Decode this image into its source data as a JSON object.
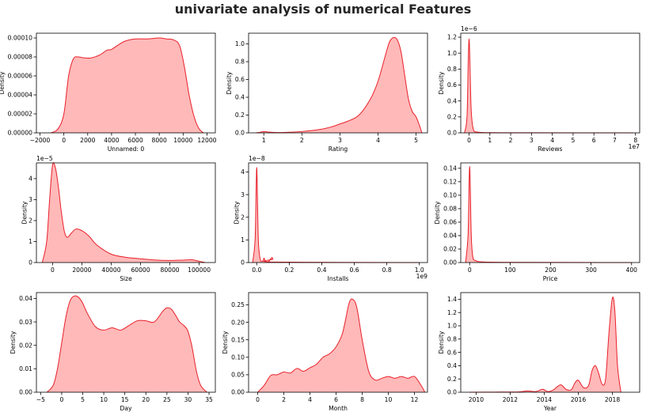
{
  "title": "univariate analysis of numerical Features",
  "colors": {
    "line": "#e8202a",
    "fill": "#ffb9b9",
    "axis": "#000000"
  },
  "chart_data": [
    {
      "type": "area",
      "xlabel": "Unnamed: 0",
      "ylabel": "Density",
      "xlim": [
        -2300,
        12700
      ],
      "ylim": [
        0,
        0.000105
      ],
      "xticks": [
        -2000,
        0,
        2000,
        4000,
        6000,
        8000,
        10000,
        12000
      ],
      "xtick_labels": [
        "−2000",
        "0",
        "2000",
        "4000",
        "6000",
        "8000",
        "10000",
        "12000"
      ],
      "yticks": [
        0,
        2e-05,
        4e-05,
        6e-05,
        8e-05,
        0.0001
      ],
      "ytick_labels": [
        "0.00000",
        "0.00002",
        "0.00004",
        "0.00006",
        "0.00008",
        "0.00010"
      ],
      "offset_label": "",
      "x": [
        -1100,
        -500,
        0,
        400,
        800,
        1200,
        1700,
        2300,
        3000,
        3600,
        4000,
        4600,
        5200,
        6000,
        7000,
        8000,
        8600,
        9200,
        9700,
        10100,
        10500,
        10900,
        11300,
        11700
      ],
      "y": [
        0,
        4e-06,
        2e-05,
        6e-05,
        7.8e-05,
        8e-05,
        7.9e-05,
        7.9e-05,
        8.2e-05,
        8.7e-05,
        8.8e-05,
        9.3e-05,
        9.7e-05,
        9.9e-05,
        9.9e-05,
        0.0001,
        9.9e-05,
        9.8e-05,
        9.2e-05,
        7e-05,
        4e-05,
        1.8e-05,
        5e-06,
        0
      ]
    },
    {
      "type": "area",
      "xlabel": "Rating",
      "ylabel": "Density",
      "xlim": [
        0.6,
        5.3
      ],
      "ylim": [
        0,
        1.12
      ],
      "xticks": [
        1,
        2,
        3,
        4,
        5
      ],
      "xtick_labels": [
        "1",
        "2",
        "3",
        "4",
        "5"
      ],
      "yticks": [
        0,
        0.2,
        0.4,
        0.6,
        0.8,
        1.0
      ],
      "ytick_labels": [
        "0.0",
        "0.2",
        "0.4",
        "0.6",
        "0.8",
        "1.0"
      ],
      "offset_label": "",
      "x": [
        0.8,
        0.95,
        1.0,
        1.1,
        1.3,
        1.6,
        2.0,
        2.5,
        2.8,
        3.0,
        3.2,
        3.5,
        3.8,
        4.0,
        4.2,
        4.3,
        4.4,
        4.5,
        4.6,
        4.7,
        4.8,
        4.9,
        5.0,
        5.1,
        5.15
      ],
      "y": [
        0,
        0.01,
        0.015,
        0.01,
        0.004,
        0.006,
        0.015,
        0.04,
        0.07,
        0.1,
        0.13,
        0.2,
        0.38,
        0.58,
        0.88,
        1.02,
        1.07,
        1.05,
        0.92,
        0.65,
        0.38,
        0.24,
        0.18,
        0.07,
        0
      ]
    },
    {
      "type": "area",
      "xlabel": "Reviews",
      "ylabel": "Density",
      "xlim": [
        -400000,
        8200000
      ],
      "ylim": [
        0,
        1.25e-06
      ],
      "xticks": [
        0,
        1000000,
        2000000,
        3000000,
        4000000,
        5000000,
        6000000,
        7000000,
        8000000
      ],
      "xtick_labels": [
        "0",
        "1",
        "2",
        "3",
        "4",
        "5",
        "6",
        "7",
        "8"
      ],
      "yticks": [
        0,
        2e-07,
        4e-07,
        6e-07,
        8e-07,
        1e-06,
        1.2e-06
      ],
      "ytick_labels": [
        "0.0",
        "0.2",
        "0.4",
        "0.6",
        "0.8",
        "1.0",
        "1.2"
      ],
      "offset_label": "1e−6",
      "x_offset_label": "1e7",
      "x": [
        -220000,
        -100000,
        -40000,
        0,
        40000,
        100000,
        200000,
        400000,
        1000000,
        3000000,
        7900000
      ],
      "y": [
        0,
        2e-07,
        9e-07,
        1.18e-06,
        9e-07,
        3e-07,
        5e-08,
        1e-08,
        2e-09,
        1e-09,
        0
      ]
    },
    {
      "type": "area",
      "xlabel": "Size",
      "ylabel": "Density",
      "xlim": [
        -11000,
        111000
      ],
      "ylim": [
        0,
        4.75e-05
      ],
      "xticks": [
        0,
        20000,
        40000,
        60000,
        80000,
        100000
      ],
      "xtick_labels": [
        "0",
        "20000",
        "40000",
        "60000",
        "80000",
        "100000"
      ],
      "yticks": [
        0,
        1e-05,
        2e-05,
        3e-05,
        4e-05
      ],
      "ytick_labels": [
        "0",
        "1",
        "2",
        "3",
        "4"
      ],
      "offset_label": "1e−5",
      "x": [
        -7000,
        -4000,
        -2000,
        0,
        2000,
        4000,
        6000,
        8000,
        10000,
        13000,
        16000,
        20000,
        25000,
        30000,
        40000,
        50000,
        60000,
        70000,
        80000,
        90000,
        95000,
        100000,
        104000
      ],
      "y": [
        0,
        1e-05,
        3e-05,
        4.65e-05,
        4.5e-05,
        3.6e-05,
        2.4e-05,
        1.5e-05,
        1.2e-05,
        1.42e-05,
        1.6e-05,
        1.52e-05,
        1.25e-05,
        8.5e-06,
        4e-06,
        2.5e-06,
        1.8e-06,
        1.2e-06,
        1e-06,
        1.2e-06,
        1.3e-06,
        6e-07,
        0
      ]
    },
    {
      "type": "area",
      "xlabel": "Installs",
      "ylabel": "Density",
      "xlim": [
        -50000000,
        1050000000
      ],
      "ylim": [
        0,
        4.4e-08
      ],
      "xticks": [
        0,
        200000000,
        400000000,
        600000000,
        800000000,
        1000000000
      ],
      "xtick_labels": [
        "0.0",
        "0.2",
        "0.4",
        "0.6",
        "0.8",
        "1.0"
      ],
      "yticks": [
        0,
        1e-08,
        2e-08,
        3e-08,
        4e-08
      ],
      "ytick_labels": [
        "0",
        "1",
        "2",
        "3",
        "4"
      ],
      "offset_label": "1e−8",
      "x_offset_label": "1e9",
      "x": [
        -25000000,
        -10000000,
        -3000000,
        0,
        3000000,
        10000000,
        20000000,
        30000000,
        40000000,
        45000000,
        50000000,
        60000000,
        70000000,
        80000000,
        90000000,
        95000000,
        100000000,
        110000000,
        1000000000
      ],
      "y": [
        0,
        1e-08,
        3.5e-08,
        4.2e-08,
        3.5e-08,
        1e-08,
        2e-09,
        5e-10,
        1e-09,
        2e-09,
        1e-09,
        3e-10,
        2e-10,
        1e-09,
        2e-09,
        2.2e-09,
        1.5e-09,
        2e-10,
        0
      ]
    },
    {
      "type": "area",
      "xlabel": "Price",
      "ylabel": "Density",
      "xlim": [
        -22,
        420
      ],
      "ylim": [
        0,
        0.148
      ],
      "xticks": [
        0,
        100,
        200,
        300,
        400
      ],
      "xtick_labels": [
        "0",
        "100",
        "200",
        "300",
        "400"
      ],
      "yticks": [
        0,
        0.02,
        0.04,
        0.06,
        0.08,
        0.1,
        0.12,
        0.14
      ],
      "ytick_labels": [
        "0.00",
        "0.02",
        "0.04",
        "0.06",
        "0.08",
        "0.10",
        "0.12",
        "0.14"
      ],
      "offset_label": "",
      "x": [
        -10,
        -4,
        -1.5,
        0,
        1.5,
        4,
        8,
        15,
        30,
        100,
        400
      ],
      "y": [
        0,
        0.04,
        0.115,
        0.143,
        0.115,
        0.04,
        0.008,
        0.003,
        0.001,
        0.0003,
        0
      ]
    },
    {
      "type": "area",
      "xlabel": "Day",
      "ylabel": "Density",
      "xlim": [
        -6,
        36.5
      ],
      "ylim": [
        0,
        0.0425
      ],
      "xticks": [
        -5,
        0,
        5,
        10,
        15,
        20,
        25,
        30,
        35
      ],
      "xtick_labels": [
        "−5",
        "0",
        "5",
        "10",
        "15",
        "20",
        "25",
        "30",
        "35"
      ],
      "yticks": [
        0,
        0.01,
        0.02,
        0.03,
        0.04
      ],
      "ytick_labels": [
        "0.00",
        "0.01",
        "0.02",
        "0.03",
        "0.04"
      ],
      "offset_label": "",
      "x": [
        -3.5,
        -2,
        -1,
        0,
        1,
        2,
        3,
        4,
        5,
        6,
        8,
        10,
        12,
        14,
        16,
        18,
        20,
        22,
        24,
        25,
        26,
        27,
        28,
        29,
        30,
        31,
        32,
        33,
        34.5
      ],
      "y": [
        0,
        0.003,
        0.01,
        0.021,
        0.032,
        0.039,
        0.041,
        0.0405,
        0.038,
        0.034,
        0.028,
        0.0265,
        0.0275,
        0.0265,
        0.0285,
        0.0305,
        0.0305,
        0.03,
        0.0345,
        0.036,
        0.0355,
        0.033,
        0.03,
        0.0285,
        0.026,
        0.019,
        0.009,
        0.003,
        0
      ]
    },
    {
      "type": "area",
      "xlabel": "Month",
      "ylabel": "Density",
      "xlim": [
        -0.7,
        13.0
      ],
      "ylim": [
        0,
        0.285
      ],
      "xticks": [
        0,
        2,
        4,
        6,
        8,
        10,
        12
      ],
      "xtick_labels": [
        "0",
        "2",
        "4",
        "6",
        "8",
        "10",
        "12"
      ],
      "yticks": [
        0,
        0.05,
        0.1,
        0.15,
        0.2,
        0.25
      ],
      "ytick_labels": [
        "0.00",
        "0.05",
        "0.10",
        "0.15",
        "0.20",
        "0.25"
      ],
      "offset_label": "",
      "x": [
        0,
        0.5,
        1,
        1.5,
        2,
        2.5,
        3,
        3.5,
        4,
        4.5,
        5,
        5.5,
        6,
        6.5,
        7,
        7.3,
        7.6,
        8,
        8.5,
        9,
        9.5,
        10,
        10.5,
        11,
        11.5,
        12,
        12.5,
        12.8
      ],
      "y": [
        0,
        0.02,
        0.048,
        0.05,
        0.058,
        0.055,
        0.068,
        0.06,
        0.07,
        0.08,
        0.1,
        0.11,
        0.13,
        0.17,
        0.255,
        0.265,
        0.24,
        0.15,
        0.06,
        0.035,
        0.04,
        0.045,
        0.04,
        0.045,
        0.04,
        0.045,
        0.02,
        0
      ]
    },
    {
      "type": "area",
      "xlabel": "Year",
      "ylabel": "Density",
      "xlim": [
        2009.1,
        2019.6
      ],
      "ylim": [
        0,
        1.5
      ],
      "xticks": [
        2010,
        2012,
        2014,
        2016,
        2018
      ],
      "xtick_labels": [
        "2010",
        "2012",
        "2014",
        "2016",
        "2018"
      ],
      "yticks": [
        0,
        0.2,
        0.4,
        0.6,
        0.8,
        1.0,
        1.2,
        1.4
      ],
      "ytick_labels": [
        "0.0",
        "0.2",
        "0.4",
        "0.6",
        "0.8",
        "1.0",
        "1.2",
        "1.4"
      ],
      "offset_label": "",
      "x": [
        2009.6,
        2011,
        2012.5,
        2013,
        2013.5,
        2013.9,
        2014.2,
        2014.5,
        2014.8,
        2015,
        2015.3,
        2015.6,
        2015.8,
        2016,
        2016.3,
        2016.6,
        2016.8,
        2017,
        2017.2,
        2017.4,
        2017.6,
        2017.8,
        2018,
        2018.15,
        2018.3,
        2018.5
      ],
      "y": [
        0,
        0.002,
        0.005,
        0.02,
        0.01,
        0.045,
        0.01,
        0.03,
        0.09,
        0.11,
        0.04,
        0.04,
        0.14,
        0.18,
        0.07,
        0.1,
        0.32,
        0.4,
        0.28,
        0.12,
        0.2,
        0.9,
        1.42,
        1.2,
        0.4,
        0
      ]
    }
  ]
}
